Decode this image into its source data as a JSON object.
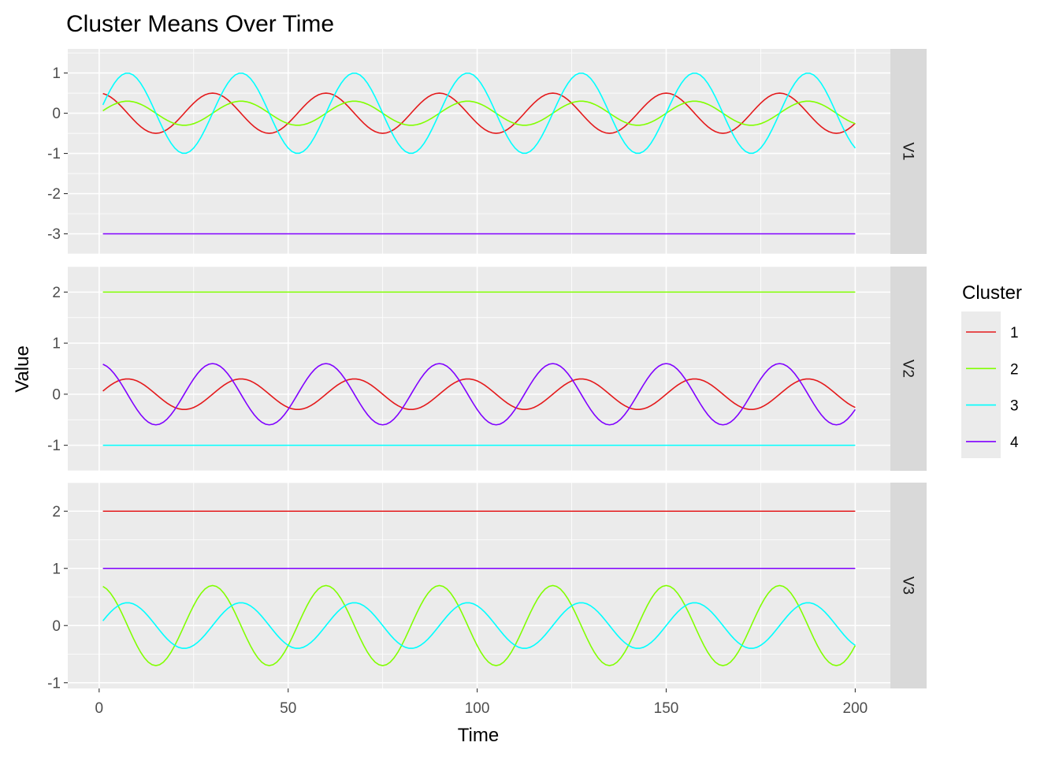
{
  "chart_data": {
    "type": "line",
    "title": "Cluster Means Over Time",
    "xlabel": "Time",
    "ylabel": "Value",
    "xlim": [
      1,
      200
    ],
    "x_ticks": [
      0,
      50,
      100,
      150,
      200
    ],
    "legend": {
      "title": "Cluster",
      "placement": "right",
      "entries": [
        {
          "name": "1",
          "color": "#e41a1c"
        },
        {
          "name": "2",
          "color": "#80ff00"
        },
        {
          "name": "3",
          "color": "#00ffff"
        },
        {
          "name": "4",
          "color": "#8000ff"
        }
      ]
    },
    "facets": [
      {
        "label": "V1",
        "ylim": [
          -3.5,
          1.6
        ],
        "y_ticks": [
          -3,
          -2,
          -1,
          0,
          1
        ],
        "series": [
          {
            "cluster": "1",
            "color": "#e41a1c",
            "kind": "sine",
            "amplitude": 0.5,
            "period": 30,
            "phase_deg": 90,
            "offset": 0
          },
          {
            "cluster": "2",
            "color": "#80ff00",
            "kind": "sine",
            "amplitude": 0.3,
            "period": 30,
            "phase_deg": 0,
            "offset": 0
          },
          {
            "cluster": "3",
            "color": "#00ffff",
            "kind": "sine",
            "amplitude": 1.0,
            "period": 30,
            "phase_deg": 0,
            "offset": 0
          },
          {
            "cluster": "4",
            "color": "#8000ff",
            "kind": "constant",
            "value": -3
          }
        ]
      },
      {
        "label": "V2",
        "ylim": [
          -1.5,
          2.5
        ],
        "y_ticks": [
          -1,
          0,
          1,
          2
        ],
        "series": [
          {
            "cluster": "1",
            "color": "#e41a1c",
            "kind": "sine",
            "amplitude": 0.3,
            "period": 30,
            "phase_deg": 0,
            "offset": 0
          },
          {
            "cluster": "2",
            "color": "#80ff00",
            "kind": "constant",
            "value": 2
          },
          {
            "cluster": "3",
            "color": "#00ffff",
            "kind": "constant",
            "value": -1
          },
          {
            "cluster": "4",
            "color": "#8000ff",
            "kind": "sine",
            "amplitude": 0.6,
            "period": 30,
            "phase_deg": 90,
            "offset": 0
          }
        ]
      },
      {
        "label": "V3",
        "ylim": [
          -1.1,
          2.5
        ],
        "y_ticks": [
          -1,
          0,
          1,
          2
        ],
        "series": [
          {
            "cluster": "1",
            "color": "#e41a1c",
            "kind": "constant",
            "value": 2
          },
          {
            "cluster": "2",
            "color": "#80ff00",
            "kind": "sine",
            "amplitude": 0.7,
            "period": 30,
            "phase_deg": 90,
            "offset": 0
          },
          {
            "cluster": "3",
            "color": "#00ffff",
            "kind": "sine",
            "amplitude": 0.4,
            "period": 30,
            "phase_deg": 0,
            "offset": 0
          },
          {
            "cluster": "4",
            "color": "#8000ff",
            "kind": "constant",
            "value": 1
          }
        ]
      }
    ],
    "grid": true
  }
}
